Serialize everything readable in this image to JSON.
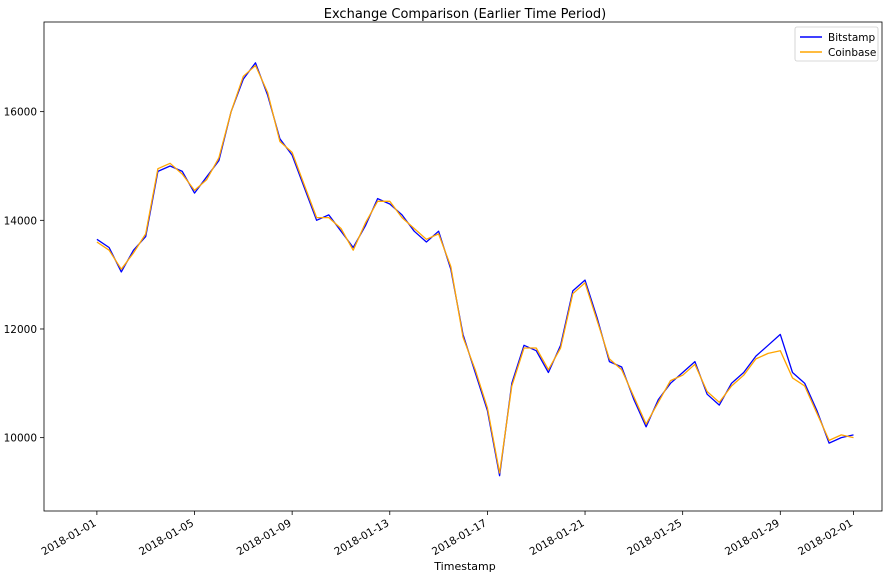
{
  "chart_data": {
    "type": "line",
    "title": "Exchange Comparison (Earlier Time Period)",
    "xlabel": "Timestamp",
    "ylabel": "",
    "xlim": [
      "2017-12-29T20:00",
      "2018-02-02T04:00"
    ],
    "ylim": [
      8650,
      17650
    ],
    "x_ticks": [
      "2018-01-01",
      "2018-01-05",
      "2018-01-09",
      "2018-01-13",
      "2018-01-17",
      "2018-01-21",
      "2018-01-25",
      "2018-01-29",
      "2018-02-01"
    ],
    "y_ticks": [
      10000,
      12000,
      14000,
      16000
    ],
    "grid": false,
    "legend_position": "top-right",
    "x": [
      "2018-01-01T00:00",
      "2018-01-01T12:00",
      "2018-01-02T00:00",
      "2018-01-02T12:00",
      "2018-01-03T00:00",
      "2018-01-03T12:00",
      "2018-01-04T00:00",
      "2018-01-04T12:00",
      "2018-01-05T00:00",
      "2018-01-05T12:00",
      "2018-01-06T00:00",
      "2018-01-06T12:00",
      "2018-01-07T00:00",
      "2018-01-07T12:00",
      "2018-01-08T00:00",
      "2018-01-08T12:00",
      "2018-01-09T00:00",
      "2018-01-09T12:00",
      "2018-01-10T00:00",
      "2018-01-10T12:00",
      "2018-01-11T00:00",
      "2018-01-11T12:00",
      "2018-01-12T00:00",
      "2018-01-12T12:00",
      "2018-01-13T00:00",
      "2018-01-13T12:00",
      "2018-01-14T00:00",
      "2018-01-14T12:00",
      "2018-01-15T00:00",
      "2018-01-15T12:00",
      "2018-01-16T00:00",
      "2018-01-16T12:00",
      "2018-01-17T00:00",
      "2018-01-17T12:00",
      "2018-01-18T00:00",
      "2018-01-18T12:00",
      "2018-01-19T00:00",
      "2018-01-19T12:00",
      "2018-01-20T00:00",
      "2018-01-20T12:00",
      "2018-01-21T00:00",
      "2018-01-21T12:00",
      "2018-01-22T00:00",
      "2018-01-22T12:00",
      "2018-01-23T00:00",
      "2018-01-23T12:00",
      "2018-01-24T00:00",
      "2018-01-24T12:00",
      "2018-01-25T00:00",
      "2018-01-25T12:00",
      "2018-01-26T00:00",
      "2018-01-26T12:00",
      "2018-01-27T00:00",
      "2018-01-27T12:00",
      "2018-01-28T00:00",
      "2018-01-28T12:00",
      "2018-01-29T00:00",
      "2018-01-29T12:00",
      "2018-01-30T00:00",
      "2018-01-30T12:00",
      "2018-01-31T00:00",
      "2018-01-31T12:00",
      "2018-02-01T00:00"
    ],
    "series": [
      {
        "name": "Bitstamp",
        "color": "#0000ff",
        "values": [
          13650,
          13500,
          13050,
          13450,
          13700,
          14900,
          15000,
          14900,
          14500,
          14800,
          15100,
          16000,
          16600,
          16900,
          16300,
          15500,
          15200,
          14600,
          14000,
          14100,
          13800,
          13500,
          13900,
          14400,
          14300,
          14100,
          13800,
          13600,
          13800,
          13100,
          11900,
          11200,
          10500,
          9300,
          11000,
          11700,
          11600,
          11200,
          11700,
          12700,
          12900,
          12200,
          11400,
          11300,
          10700,
          10200,
          10700,
          11000,
          11200,
          11400,
          10800,
          10600,
          11000,
          11200,
          11500,
          11700,
          11900,
          11200,
          11000,
          10500,
          9900,
          10000,
          10050
        ]
      },
      {
        "name": "Coinbase",
        "color": "#ffa500",
        "values": [
          13600,
          13450,
          13100,
          13400,
          13750,
          14950,
          15050,
          14850,
          14550,
          14750,
          15150,
          16000,
          16650,
          16850,
          16350,
          15450,
          15250,
          14650,
          14050,
          14050,
          13850,
          13450,
          13950,
          14350,
          14350,
          14050,
          13850,
          13650,
          13750,
          13150,
          11850,
          11250,
          10550,
          9350,
          10950,
          11650,
          11650,
          11250,
          11650,
          12650,
          12850,
          12150,
          11450,
          11250,
          10750,
          10250,
          10650,
          11050,
          11150,
          11350,
          10850,
          10650,
          10950,
          11150,
          11450,
          11550,
          11600,
          11100,
          10950,
          10450,
          9950,
          10050,
          10000
        ]
      }
    ]
  }
}
